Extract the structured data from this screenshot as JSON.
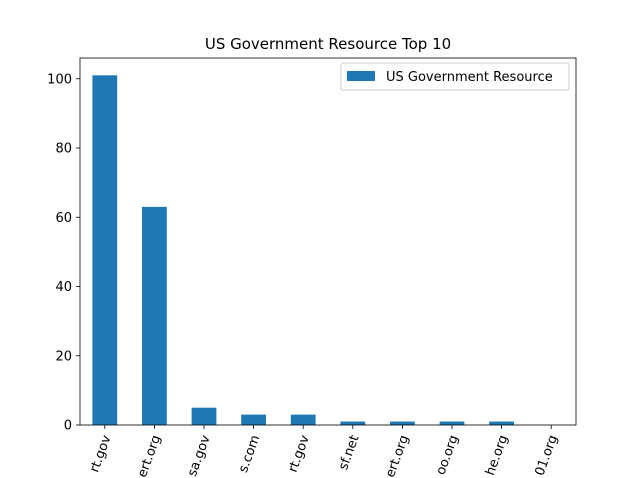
{
  "chart_data": {
    "type": "bar",
    "title": "US Government Resource Top 10",
    "xlabel": "",
    "ylabel": "",
    "categories": [
      "rt.gov",
      "ert.org",
      "sa.gov",
      "s.com",
      "rt.gov",
      "sf.net",
      "ert.org",
      "oo.org",
      "he.org",
      "01.org"
    ],
    "series": [
      {
        "name": "US Government Resource",
        "values": [
          101,
          63,
          5,
          3,
          3,
          1,
          1,
          1,
          1,
          0
        ]
      }
    ],
    "ylim": [
      0,
      106
    ],
    "yticks": [
      0,
      20,
      40,
      60,
      80,
      100
    ],
    "grid": false,
    "legend_position": "top-right",
    "bar_color": "#1f77b4"
  }
}
